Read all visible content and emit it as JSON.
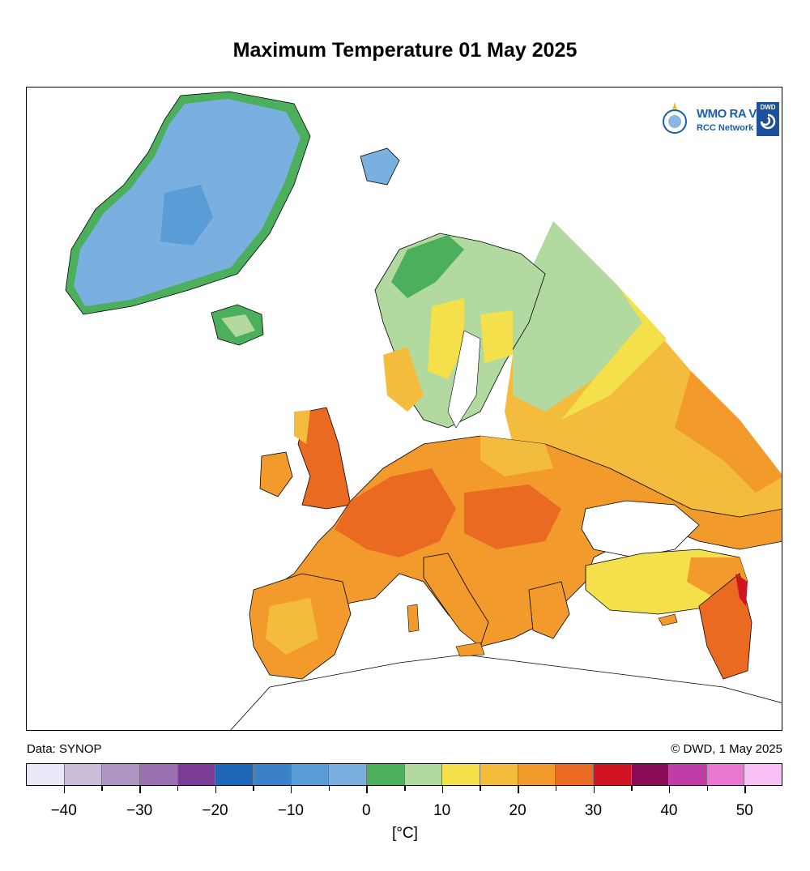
{
  "title": "Maximum Temperature 01 May 2025",
  "source_left": "Data: SYNOP",
  "source_right": "© DWD, 1 May 2025",
  "logo": {
    "wmo": "WMO RA VI",
    "rcc": "RCC Network",
    "dwd": "DWD"
  },
  "legend": {
    "unit": "[°C]",
    "colors": [
      "#e8e8f8",
      "#c8bcd8",
      "#b096c4",
      "#9a70b0",
      "#7a3c96",
      "#1e66b8",
      "#3a82c8",
      "#5a9cd6",
      "#7ab0e0",
      "#4caf5c",
      "#b2d9a0",
      "#f4e04a",
      "#f4bc3c",
      "#f29a2c",
      "#ea6a22",
      "#d01422",
      "#8a0a58",
      "#c23ca8",
      "#e878d0",
      "#f8c0f4"
    ],
    "tick_values": [
      -40,
      -30,
      -20,
      -10,
      0,
      10,
      20,
      30,
      40,
      50
    ],
    "tick_labels": [
      "−40",
      "−30",
      "−20",
      "−10",
      "0",
      "10",
      "20",
      "30",
      "40",
      "50"
    ],
    "min": -45,
    "max": 55
  }
}
